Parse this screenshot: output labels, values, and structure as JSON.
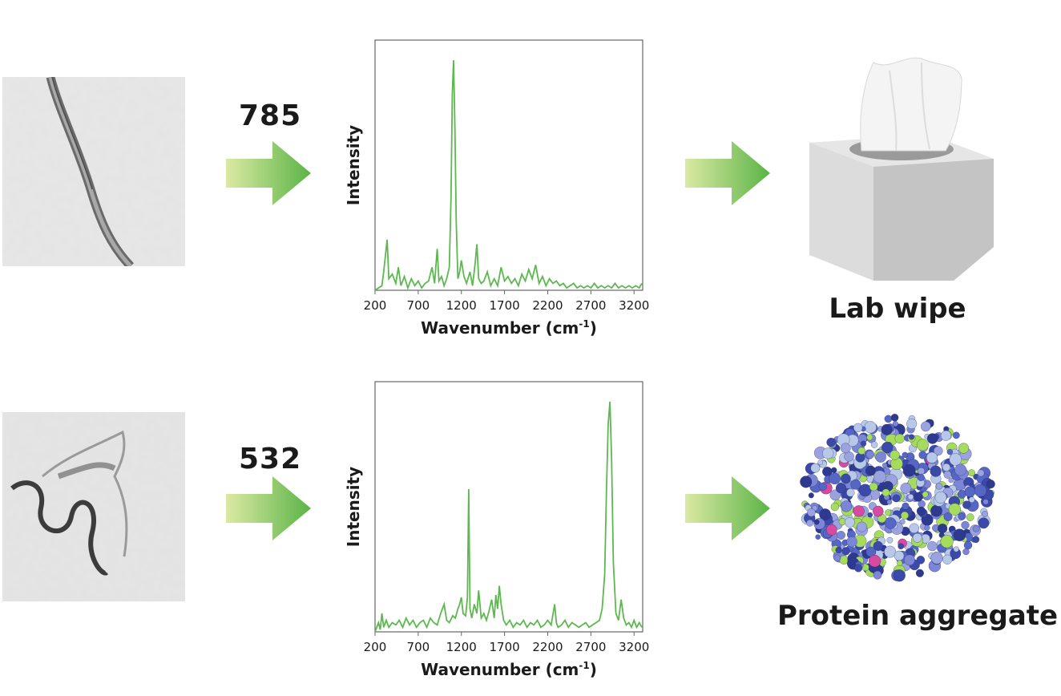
{
  "rows": [
    {
      "laser": "785",
      "label": "Lab wipe",
      "chart": {
        "type": "line",
        "xlabel": "Wavenumber (cm",
        "xlabel_sup": "-1",
        "xlabel_end": ")",
        "ylabel": "Intensity",
        "xlim": [
          200,
          3300
        ],
        "xticks": [
          "200",
          "700",
          "1200",
          "1700",
          "2200",
          "2700",
          "3200"
        ],
        "color": "#5cb84f"
      }
    },
    {
      "laser": "532",
      "label": "Protein aggregate",
      "chart": {
        "type": "line",
        "xlabel": "Wavenumber (cm",
        "xlabel_sup": "-1",
        "xlabel_end": ")",
        "ylabel": "Intensity",
        "xlim": [
          200,
          3300
        ],
        "xticks": [
          "200",
          "700",
          "1200",
          "1700",
          "2200",
          "2700",
          "3200"
        ],
        "color": "#5cb84f"
      }
    }
  ],
  "chart_data": [
    {
      "type": "line",
      "xlabel": "Wavenumber (cm-1)",
      "ylabel": "Intensity",
      "xlim": [
        200,
        3300
      ],
      "ylim": [
        0,
        1
      ],
      "x": [
        200,
        280,
        300,
        340,
        360,
        400,
        440,
        470,
        500,
        540,
        580,
        620,
        660,
        700,
        740,
        780,
        820,
        860,
        890,
        920,
        940,
        970,
        1000,
        1030,
        1060,
        1080,
        1095,
        1110,
        1125,
        1140,
        1160,
        1180,
        1200,
        1230,
        1260,
        1300,
        1330,
        1360,
        1380,
        1400,
        1430,
        1460,
        1500,
        1540,
        1580,
        1620,
        1660,
        1700,
        1740,
        1780,
        1820,
        1860,
        1900,
        1940,
        1980,
        2020,
        2060,
        2100,
        2140,
        2180,
        2220,
        2260,
        2300,
        2340,
        2380,
        2420,
        2460,
        2500,
        2540,
        2580,
        2620,
        2660,
        2700,
        2740,
        2780,
        2820,
        2860,
        2900,
        2940,
        2980,
        3020,
        3060,
        3100,
        3140,
        3180,
        3220,
        3260,
        3290
      ],
      "values": [
        0.0,
        0.02,
        0.08,
        0.22,
        0.05,
        0.07,
        0.03,
        0.1,
        0.02,
        0.06,
        0.01,
        0.05,
        0.02,
        0.04,
        0.01,
        0.03,
        0.04,
        0.1,
        0.03,
        0.18,
        0.04,
        0.06,
        0.02,
        0.05,
        0.1,
        0.4,
        0.85,
        1.0,
        0.7,
        0.3,
        0.05,
        0.08,
        0.13,
        0.06,
        0.03,
        0.08,
        0.02,
        0.12,
        0.2,
        0.05,
        0.03,
        0.04,
        0.08,
        0.02,
        0.05,
        0.02,
        0.1,
        0.04,
        0.06,
        0.03,
        0.05,
        0.02,
        0.07,
        0.04,
        0.09,
        0.05,
        0.11,
        0.03,
        0.06,
        0.02,
        0.05,
        0.03,
        0.04,
        0.02,
        0.03,
        0.01,
        0.02,
        0.03,
        0.01,
        0.02,
        0.01,
        0.02,
        0.01,
        0.03,
        0.01,
        0.02,
        0.01,
        0.02,
        0.01,
        0.03,
        0.01,
        0.02,
        0.01,
        0.02,
        0.01,
        0.02,
        0.01,
        0.03
      ]
    },
    {
      "type": "line",
      "xlabel": "Wavenumber (cm-1)",
      "ylabel": "Intensity",
      "xlim": [
        200,
        3300
      ],
      "ylim": [
        0,
        1
      ],
      "x": [
        200,
        240,
        260,
        280,
        300,
        330,
        360,
        400,
        440,
        480,
        520,
        560,
        600,
        640,
        680,
        720,
        760,
        800,
        840,
        880,
        920,
        960,
        1000,
        1030,
        1060,
        1100,
        1130,
        1160,
        1180,
        1200,
        1220,
        1250,
        1270,
        1285,
        1300,
        1320,
        1350,
        1380,
        1400,
        1430,
        1460,
        1490,
        1520,
        1550,
        1580,
        1600,
        1620,
        1640,
        1660,
        1690,
        1720,
        1760,
        1800,
        1840,
        1880,
        1920,
        1960,
        2000,
        2040,
        2080,
        2120,
        2160,
        2200,
        2240,
        2280,
        2300,
        2320,
        2360,
        2400,
        2440,
        2480,
        2520,
        2560,
        2600,
        2640,
        2680,
        2720,
        2760,
        2800,
        2830,
        2860,
        2880,
        2900,
        2920,
        2940,
        2960,
        2990,
        3020,
        3050,
        3080,
        3110,
        3140,
        3170,
        3200,
        3230,
        3260,
        3290
      ],
      "values": [
        0.0,
        0.04,
        0.01,
        0.08,
        0.02,
        0.05,
        0.02,
        0.04,
        0.03,
        0.05,
        0.02,
        0.06,
        0.03,
        0.05,
        0.02,
        0.04,
        0.05,
        0.02,
        0.06,
        0.04,
        0.03,
        0.08,
        0.12,
        0.05,
        0.04,
        0.07,
        0.06,
        0.1,
        0.12,
        0.15,
        0.08,
        0.07,
        0.15,
        0.62,
        0.1,
        0.06,
        0.12,
        0.08,
        0.18,
        0.06,
        0.08,
        0.05,
        0.09,
        0.14,
        0.06,
        0.16,
        0.1,
        0.2,
        0.12,
        0.05,
        0.03,
        0.05,
        0.02,
        0.04,
        0.03,
        0.05,
        0.02,
        0.04,
        0.03,
        0.05,
        0.02,
        0.03,
        0.05,
        0.03,
        0.12,
        0.04,
        0.02,
        0.03,
        0.05,
        0.02,
        0.04,
        0.03,
        0.02,
        0.03,
        0.04,
        0.02,
        0.03,
        0.04,
        0.05,
        0.1,
        0.25,
        0.6,
        0.9,
        1.0,
        0.75,
        0.3,
        0.08,
        0.05,
        0.14,
        0.06,
        0.03,
        0.04,
        0.02,
        0.05,
        0.02,
        0.04,
        0.02
      ]
    }
  ]
}
